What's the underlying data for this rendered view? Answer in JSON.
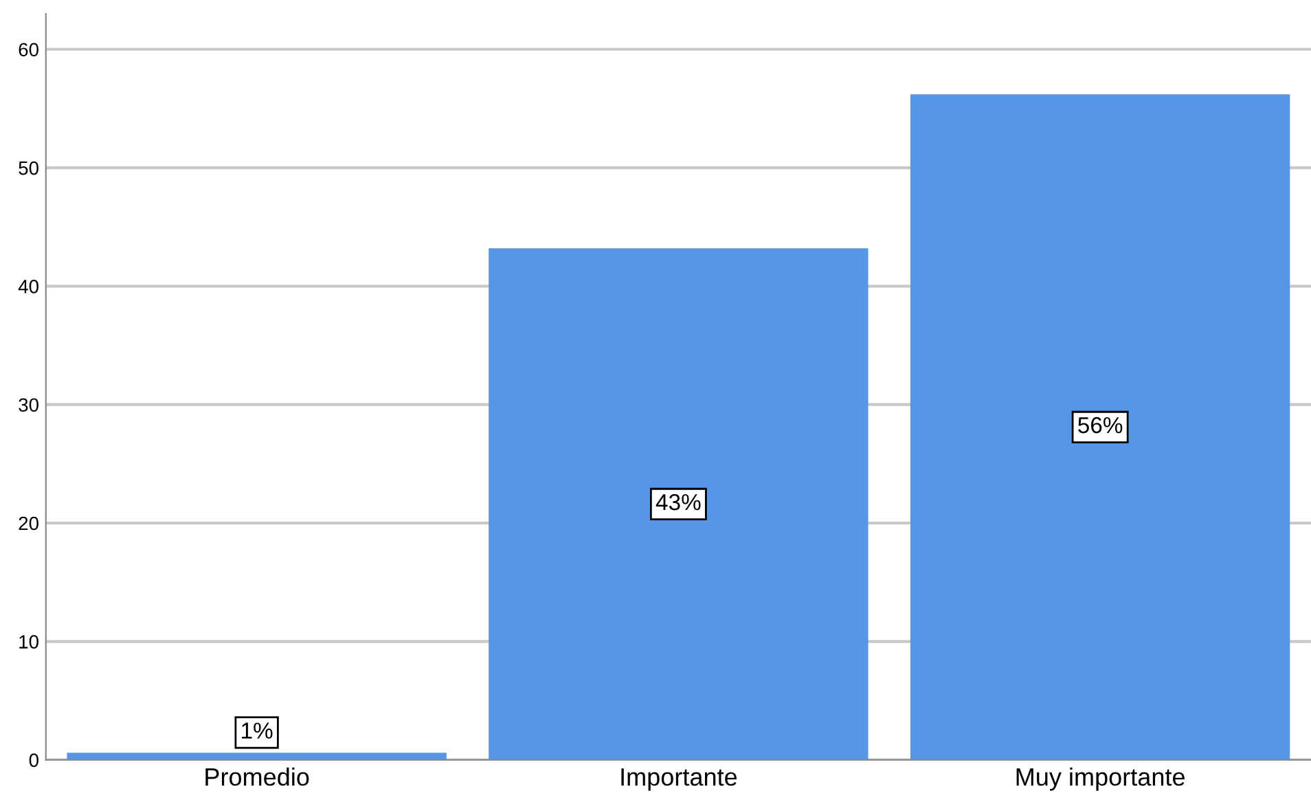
{
  "chart_data": {
    "type": "bar",
    "categories": [
      "Promedio",
      "Importante",
      "Muy importante"
    ],
    "values": [
      0.6,
      43.2,
      56.2
    ],
    "value_labels": [
      "1%",
      "43%",
      "56%"
    ],
    "color": "#5596e6",
    "ylim": [
      0,
      63
    ],
    "yticks": [
      0,
      10,
      20,
      30,
      40,
      50,
      60
    ],
    "grid": "y"
  }
}
